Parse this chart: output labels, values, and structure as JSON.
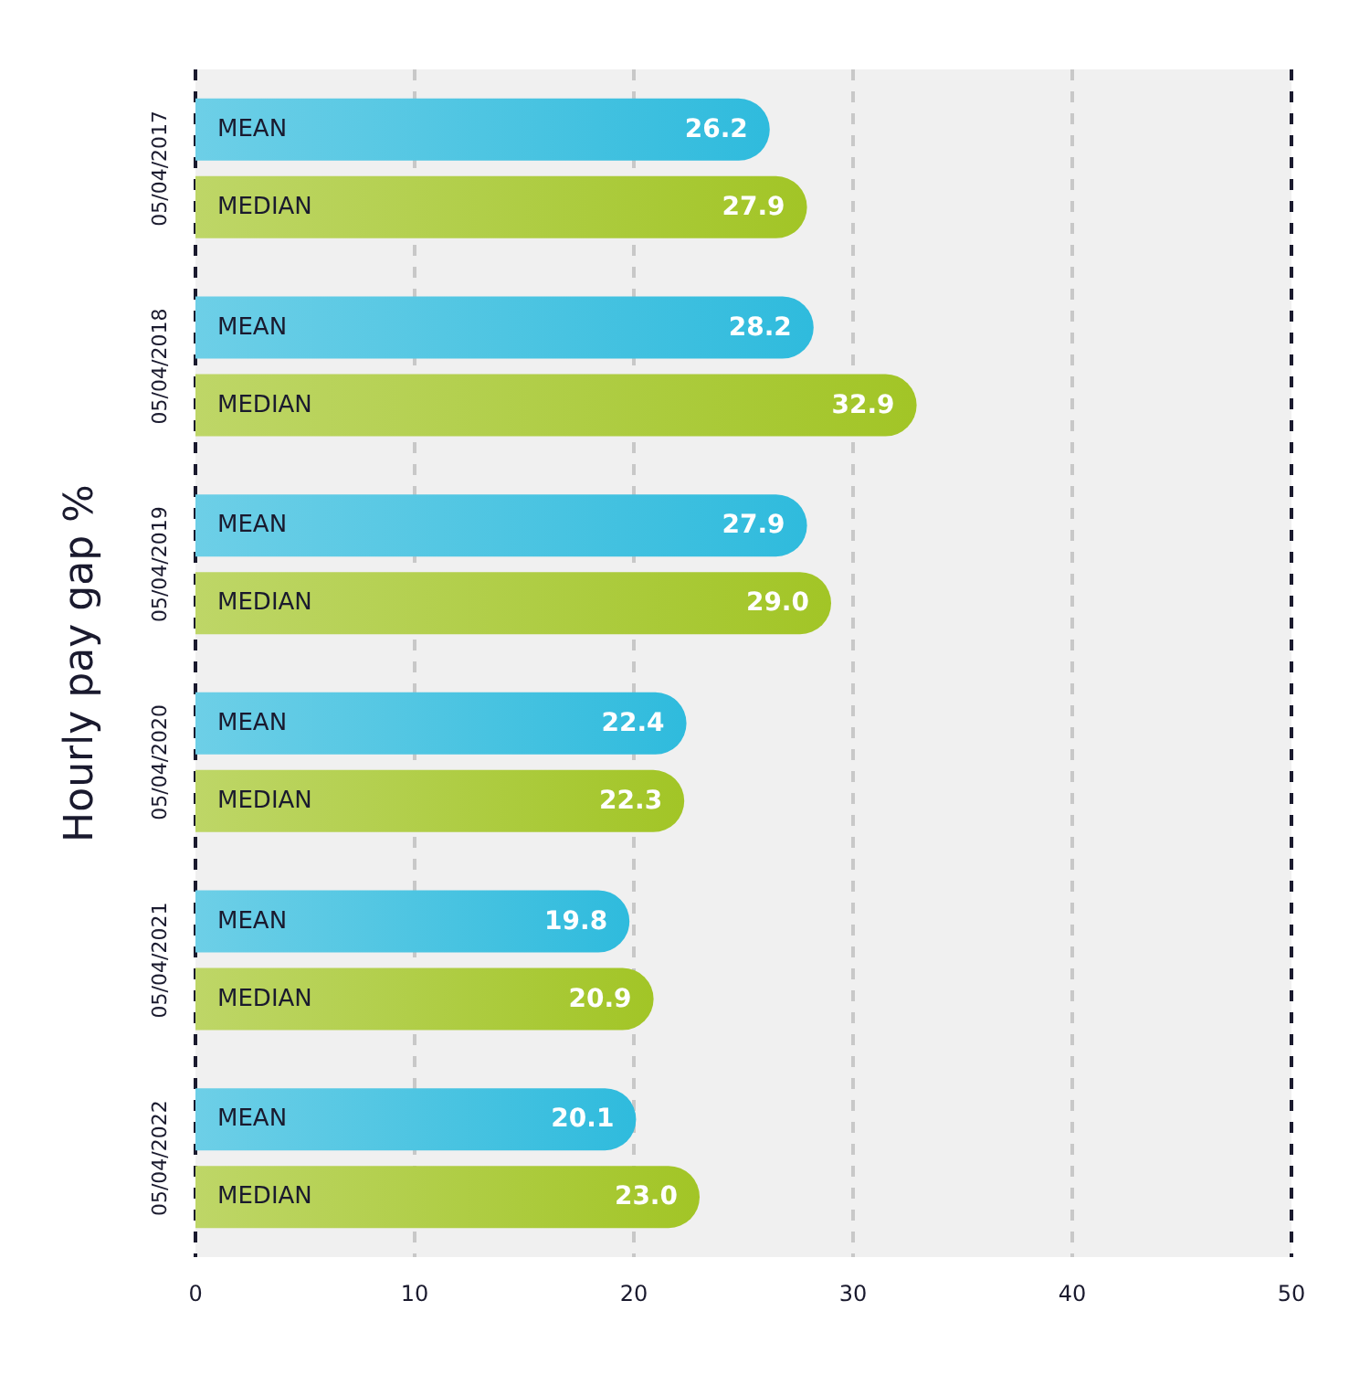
{
  "chart_data": {
    "type": "bar",
    "orientation": "horizontal",
    "ylabel": "Hourly pay gap %",
    "categories": [
      "05/04/2017",
      "05/04/2018",
      "05/04/2019",
      "05/04/2020",
      "05/04/2021",
      "05/04/2022"
    ],
    "series": [
      {
        "name": "MEAN",
        "color": "#2fbbdd",
        "values": [
          26.2,
          28.2,
          27.9,
          22.4,
          19.8,
          20.1
        ],
        "value_labels": [
          "26.2",
          "28.2",
          "27.9",
          "22.4",
          "19.8",
          "20.1"
        ]
      },
      {
        "name": "MEDIAN",
        "color": "#a2c526",
        "values": [
          27.9,
          32.9,
          29.0,
          22.3,
          20.9,
          23.0
        ],
        "value_labels": [
          "27.9",
          "32.9",
          "29.0",
          "22.3",
          "20.9",
          "23.0"
        ]
      }
    ],
    "xlim": [
      0,
      50
    ],
    "xticks": [
      0,
      10,
      20,
      30,
      40,
      50
    ],
    "grid": "x"
  }
}
